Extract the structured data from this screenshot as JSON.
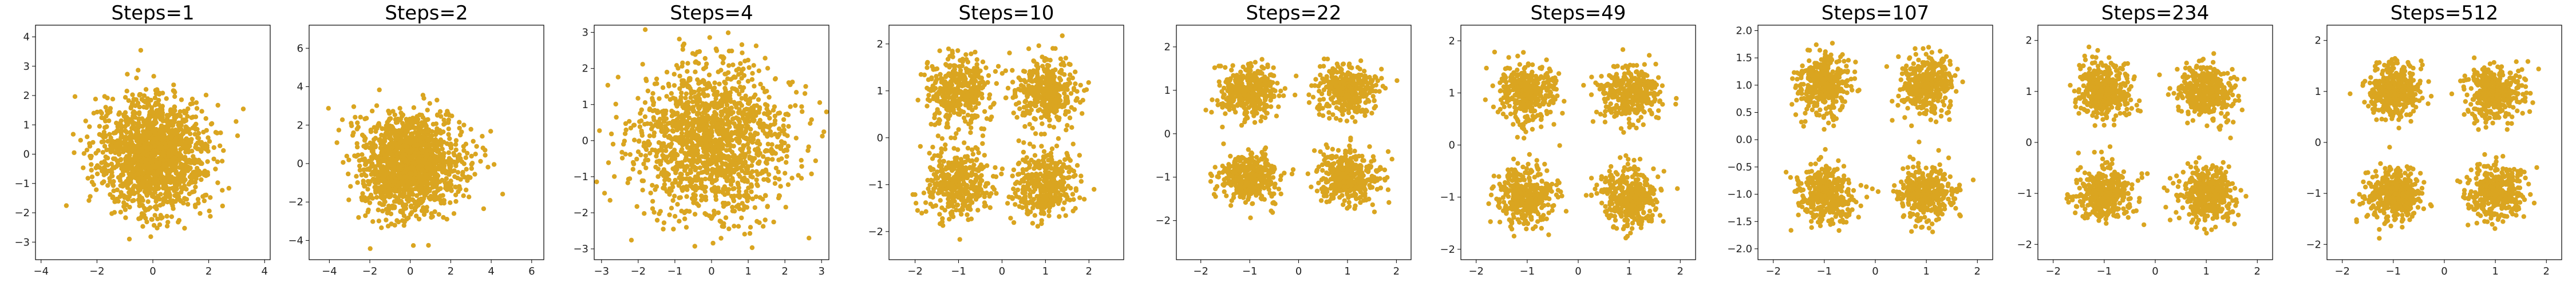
{
  "chart_data": [
    {
      "type": "scatter",
      "title": "Steps=1",
      "xlim": [
        -4.2,
        4.2
      ],
      "ylim": [
        -3.6,
        4.4
      ],
      "xticks": [
        -4,
        -2,
        0,
        2,
        4
      ],
      "yticks": [
        -3,
        -2,
        -1,
        0,
        1,
        2,
        3,
        4
      ],
      "distribution": "single-gaussian",
      "center": [
        0,
        0
      ],
      "spread": 0.95,
      "n_points": 1500,
      "grid": false
    },
    {
      "type": "scatter",
      "title": "Steps=2",
      "xlim": [
        -5.0,
        6.6
      ],
      "ylim": [
        -5.0,
        7.2
      ],
      "xticks": [
        -4,
        -2,
        0,
        2,
        4,
        6
      ],
      "yticks": [
        -4,
        -2,
        0,
        2,
        4,
        6
      ],
      "distribution": "single-gaussian",
      "center": [
        0,
        0
      ],
      "spread": 1.25,
      "n_points": 1500,
      "grid": false
    },
    {
      "type": "scatter",
      "title": "Steps=4",
      "xlim": [
        -3.2,
        3.2
      ],
      "ylim": [
        -3.3,
        3.2
      ],
      "xticks": [
        -3,
        -2,
        -1,
        0,
        1,
        2,
        3
      ],
      "yticks": [
        -3,
        -2,
        -1,
        0,
        1,
        2,
        3
      ],
      "distribution": "single-gaussian",
      "center": [
        0,
        0
      ],
      "spread": 1.05,
      "n_points": 1500,
      "grid": false
    },
    {
      "type": "scatter",
      "title": "Steps=10",
      "xlim": [
        -2.6,
        2.8
      ],
      "ylim": [
        -2.6,
        2.4
      ],
      "xticks": [
        -2,
        -1,
        0,
        1,
        2
      ],
      "yticks": [
        -2,
        -1,
        0,
        1,
        2
      ],
      "distribution": "four-gaussians",
      "centers": [
        [
          -1,
          1
        ],
        [
          1,
          1
        ],
        [
          -1,
          -1
        ],
        [
          1,
          -1
        ]
      ],
      "spread": 0.36,
      "n_points": 1500,
      "grid": false
    },
    {
      "type": "scatter",
      "title": "Steps=22",
      "xlim": [
        -2.5,
        2.3
      ],
      "ylim": [
        -2.9,
        2.5
      ],
      "xticks": [
        -2,
        -1,
        0,
        1,
        2
      ],
      "yticks": [
        -2,
        -1,
        0,
        1,
        2
      ],
      "distribution": "four-gaussians",
      "centers": [
        [
          -1,
          1
        ],
        [
          1,
          1
        ],
        [
          -1,
          -1
        ],
        [
          1,
          -1
        ]
      ],
      "spread": 0.3,
      "n_points": 1500,
      "grid": false
    },
    {
      "type": "scatter",
      "title": "Steps=49",
      "xlim": [
        -2.3,
        2.3
      ],
      "ylim": [
        -2.2,
        2.3
      ],
      "xticks": [
        -2,
        -1,
        0,
        1,
        2
      ],
      "yticks": [
        -2,
        -1,
        0,
        1,
        2
      ],
      "distribution": "four-gaussians",
      "centers": [
        [
          -1,
          1
        ],
        [
          1,
          1
        ],
        [
          -1,
          -1
        ],
        [
          1,
          -1
        ]
      ],
      "spread": 0.28,
      "n_points": 1500,
      "grid": false
    },
    {
      "type": "scatter",
      "title": "Steps=107",
      "xlim": [
        -2.3,
        2.3
      ],
      "ylim": [
        -2.2,
        2.1
      ],
      "xticks": [
        -2,
        -1,
        0,
        1,
        2
      ],
      "yticks": [
        -2.0,
        -1.5,
        -1.0,
        -0.5,
        0.0,
        0.5,
        1.0,
        1.5,
        2.0
      ],
      "ytick_labels": [
        "-2.0",
        "-1.5",
        "-1.0",
        "-0.5",
        "0.0",
        "0.5",
        "1.0",
        "1.5",
        "2.0"
      ],
      "distribution": "four-gaussians",
      "centers": [
        [
          -1,
          1
        ],
        [
          1,
          1
        ],
        [
          -1,
          -1
        ],
        [
          1,
          -1
        ]
      ],
      "spread": 0.26,
      "n_points": 1500,
      "grid": false
    },
    {
      "type": "scatter",
      "title": "Steps=234",
      "xlim": [
        -2.3,
        2.3
      ],
      "ylim": [
        -2.3,
        2.3
      ],
      "xticks": [
        -2,
        -1,
        0,
        1,
        2
      ],
      "yticks": [
        -2,
        -1,
        0,
        1,
        2
      ],
      "distribution": "four-gaussians",
      "centers": [
        [
          -1,
          1
        ],
        [
          1,
          1
        ],
        [
          -1,
          -1
        ],
        [
          1,
          -1
        ]
      ],
      "spread": 0.27,
      "n_points": 1500,
      "grid": false
    },
    {
      "type": "scatter",
      "title": "Steps=512",
      "xlim": [
        -2.3,
        2.3
      ],
      "ylim": [
        -2.3,
        2.3
      ],
      "xticks": [
        -2,
        -1,
        0,
        1,
        2
      ],
      "yticks": [
        -2,
        -1,
        0,
        1,
        2
      ],
      "distribution": "four-gaussians",
      "centers": [
        [
          -1,
          1
        ],
        [
          1,
          1
        ],
        [
          -1,
          -1
        ],
        [
          1,
          -1
        ]
      ],
      "spread": 0.27,
      "n_points": 1500,
      "grid": false
    }
  ],
  "colors": {
    "points": "#DAA520",
    "axes": "#000000",
    "background": "#ffffff"
  }
}
